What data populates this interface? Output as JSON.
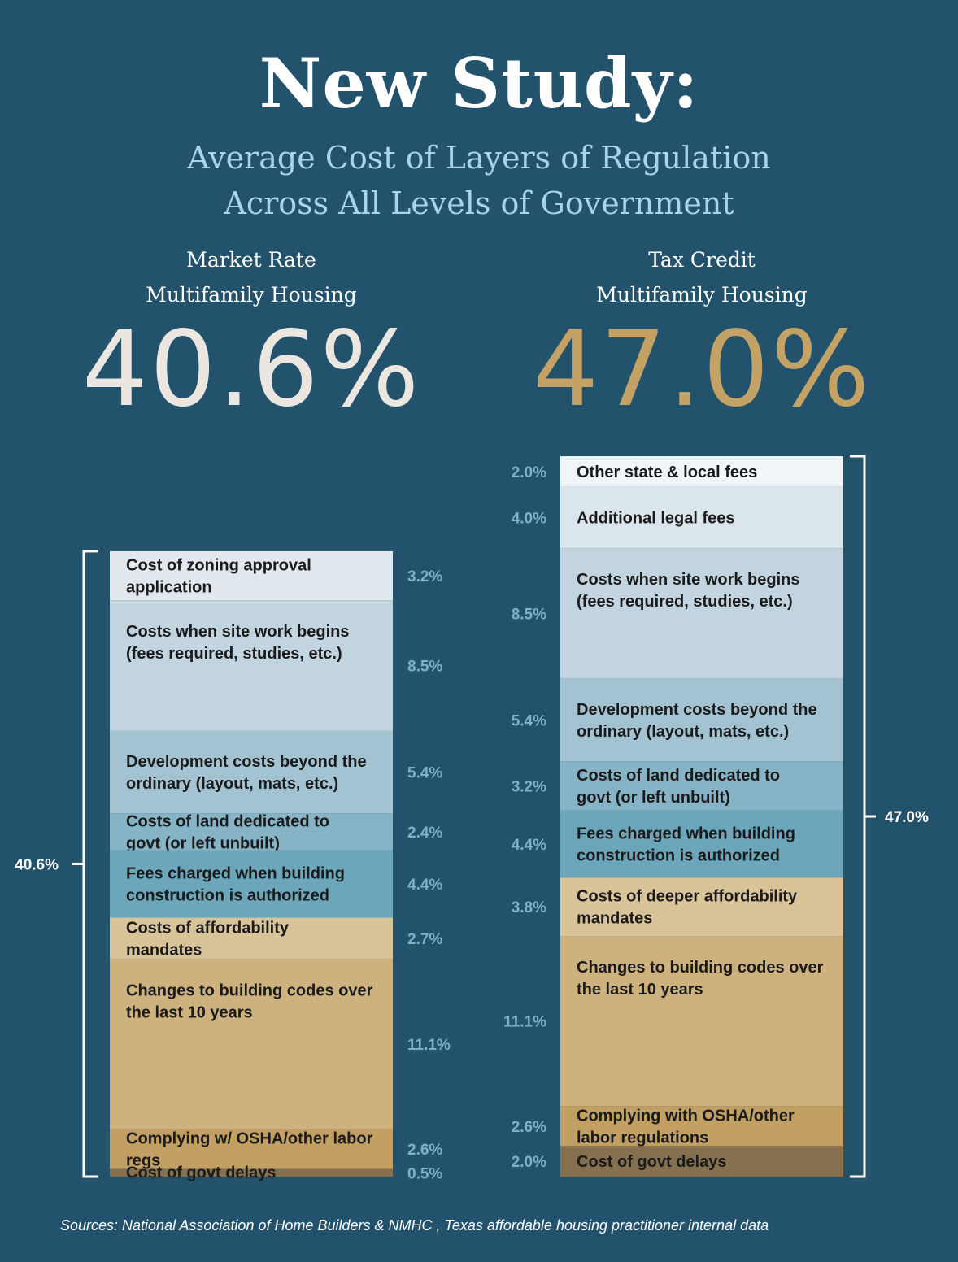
{
  "title": "New Study:",
  "subtitle_lines": [
    "Average Cost of Layers of Regulation",
    "Across All Levels of Government"
  ],
  "left": {
    "heading_line1": "Market Rate",
    "heading_line2": "Multifamily Housing",
    "total": "40.6%",
    "total_color": "#ece6e1"
  },
  "right": {
    "heading_line1": "Tax Credit",
    "heading_line2": "Multifamily Housing",
    "total": "47.0%",
    "total_color": "#c4a265"
  },
  "sources": "Sources: National  Association of Home Builders & NMHC , Texas affordable housing practitioner internal data",
  "chart_data": [
    {
      "type": "bar",
      "stacked": true,
      "name": "Market Rate Multifamily Housing",
      "total_label": "40.6%",
      "segments": [
        {
          "label": "Cost of zoning approval application",
          "value": 3.2,
          "value_label": "3.2%",
          "color": "#e1e9ee"
        },
        {
          "label": "Costs when site work begins (fees required, studies, etc.)",
          "value": 8.5,
          "value_label": "8.5%",
          "color": "#c1d4df"
        },
        {
          "label": "Development costs beyond the ordinary (layout, mats, etc.)",
          "value": 5.4,
          "value_label": "5.4%",
          "color": "#a4c3d2"
        },
        {
          "label": "Costs of land dedicated to govt (or left unbuilt)",
          "value": 2.4,
          "value_label": "2.4%",
          "color": "#86b3c6"
        },
        {
          "label": "Fees charged when building construction is authorized",
          "value": 4.4,
          "value_label": "4.4%",
          "color": "#6ca6bb"
        },
        {
          "label": "Costs of affordability mandates",
          "value": 2.7,
          "value_label": "2.7%",
          "color": "#d9c399"
        },
        {
          "label": "Changes to building codes over the last 10 years",
          "value": 11.1,
          "value_label": "11.1%",
          "color": "#cdb27e"
        },
        {
          "label": "Complying w/ OSHA/other labor regs",
          "value": 2.6,
          "value_label": "2.6%",
          "color": "#c29f63"
        },
        {
          "label": "Cost of govt delays",
          "value": 0.5,
          "value_label": "0.5%",
          "color": "#85714f"
        }
      ]
    },
    {
      "type": "bar",
      "stacked": true,
      "name": "Tax Credit Multifamily Housing",
      "total_label": "47.0%",
      "segments": [
        {
          "label": "Other state & local fees",
          "value": 2.0,
          "value_label": "2.0%",
          "color": "#eff5f8"
        },
        {
          "label": "Additional legal fees",
          "value": 4.0,
          "value_label": "4.0%",
          "color": "#dbe6ec"
        },
        {
          "label": "Costs when site work begins (fees required, studies, etc.)",
          "value": 8.5,
          "value_label": "8.5%",
          "color": "#c1d4df"
        },
        {
          "label": "Development costs beyond the ordinary (layout, mats, etc.)",
          "value": 5.4,
          "value_label": "5.4%",
          "color": "#a4c3d2"
        },
        {
          "label": "Costs of land dedicated to govt (or left unbuilt)",
          "value": 3.2,
          "value_label": "3.2%",
          "color": "#86b3c6"
        },
        {
          "label": "Fees charged when building construction is authorized",
          "value": 4.4,
          "value_label": "4.4%",
          "color": "#6ca6bb"
        },
        {
          "label": "Costs of deeper affordability mandates",
          "value": 3.8,
          "value_label": "3.8%",
          "color": "#d9c399"
        },
        {
          "label": "Changes to building codes over the last 10 years",
          "value": 11.1,
          "value_label": "11.1%",
          "color": "#cdb27e"
        },
        {
          "label": "Complying with OSHA/other labor regulations",
          "value": 2.6,
          "value_label": "2.6%",
          "color": "#c29f63"
        },
        {
          "label": "Cost of govt delays",
          "value": 2.0,
          "value_label": "2.0%",
          "color": "#85714f"
        }
      ]
    }
  ]
}
